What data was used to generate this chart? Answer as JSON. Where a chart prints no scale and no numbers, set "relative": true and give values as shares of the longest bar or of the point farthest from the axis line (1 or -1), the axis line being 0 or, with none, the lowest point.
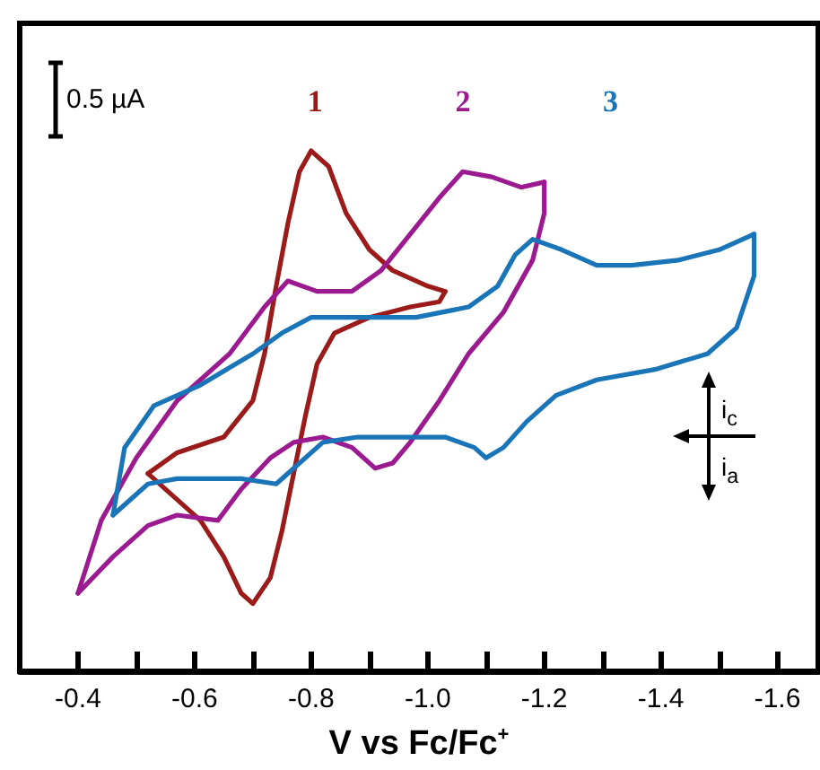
{
  "chart_data": {
    "type": "line",
    "relative": true,
    "xlabel": "V vs Fc/Fc$^{+}$",
    "xlim": [
      -0.3,
      -1.67
    ],
    "xticks": [
      {
        "value": -0.4,
        "label": "-0.4"
      },
      {
        "value": -0.5,
        "label": null
      },
      {
        "value": -0.6,
        "label": "-0.6"
      },
      {
        "value": -0.7,
        "label": null
      },
      {
        "value": -0.8,
        "label": "-0.8"
      },
      {
        "value": -0.9,
        "label": null
      },
      {
        "value": -1.0,
        "label": "-1.0"
      },
      {
        "value": -1.1,
        "label": null
      },
      {
        "value": -1.2,
        "label": "-1.2"
      },
      {
        "value": -1.3,
        "label": null
      },
      {
        "value": -1.4,
        "label": "-1.4"
      },
      {
        "value": -1.5,
        "label": null
      },
      {
        "value": -1.6,
        "label": "-1.6"
      }
    ],
    "legend": false,
    "grid": false,
    "marker": "none",
    "line_style": "solid",
    "annotations": [
      "0.5 µA",
      "i$_{c}$",
      "i$_{a}$"
    ],
    "series": [
      {
        "name": "1",
        "color": "#9b1b1b",
        "x": [
          -0.52,
          -0.57,
          -0.65,
          -0.7,
          -0.72,
          -0.74,
          -0.76,
          -0.78,
          -0.8,
          -0.83,
          -0.86,
          -0.9,
          -0.94,
          -1.0,
          -1.03
        ],
        "values": [
          0.38,
          0.42,
          0.45,
          0.52,
          0.61,
          0.74,
          0.86,
          0.96,
          1.0,
          0.97,
          0.88,
          0.81,
          0.77,
          0.74,
          0.73
        ]
      },
      {
        "color": "#9b1b1b",
        "x": [
          -1.03,
          -1.02,
          -0.97,
          -0.9,
          -0.84,
          -0.81,
          -0.79,
          -0.77,
          -0.75,
          -0.73,
          -0.7,
          -0.68,
          -0.65,
          -0.61,
          -0.56,
          -0.52
        ],
        "values": [
          0.73,
          0.71,
          0.7,
          0.68,
          0.65,
          0.59,
          0.49,
          0.38,
          0.27,
          0.18,
          0.13,
          0.15,
          0.22,
          0.29,
          0.34,
          0.38
        ]
      },
      {
        "name": "2",
        "color": "#9b1a8f",
        "x": [
          -0.4,
          -0.44,
          -0.5,
          -0.57,
          -0.66,
          -0.72,
          -0.76,
          -0.81,
          -0.87,
          -0.92,
          -0.97,
          -1.02,
          -1.06,
          -1.11,
          -1.16,
          -1.2
        ],
        "values": [
          0.15,
          0.29,
          0.41,
          0.52,
          0.61,
          0.7,
          0.75,
          0.73,
          0.73,
          0.77,
          0.84,
          0.91,
          0.96,
          0.95,
          0.93,
          0.94
        ]
      },
      {
        "color": "#9b1a8f",
        "x": [
          -1.2,
          -1.2,
          -1.18,
          -1.13,
          -1.07,
          -1.02,
          -0.97,
          -0.94,
          -0.91,
          -0.87,
          -0.82,
          -0.77,
          -0.73,
          -0.68,
          -0.64,
          -0.57,
          -0.52,
          -0.46,
          -0.4
        ],
        "values": [
          0.94,
          0.88,
          0.79,
          0.69,
          0.61,
          0.52,
          0.44,
          0.4,
          0.39,
          0.43,
          0.45,
          0.44,
          0.41,
          0.35,
          0.29,
          0.3,
          0.28,
          0.22,
          0.15
        ]
      },
      {
        "name": "3",
        "color": "#1a75b8",
        "x": [
          -0.46,
          -0.48,
          -0.53,
          -0.61,
          -0.7,
          -0.75,
          -0.8,
          -0.88,
          -0.98,
          -1.07,
          -1.12,
          -1.15,
          -1.18,
          -1.23,
          -1.29,
          -1.35,
          -1.43,
          -1.5,
          -1.56
        ],
        "values": [
          0.3,
          0.43,
          0.51,
          0.55,
          0.61,
          0.65,
          0.68,
          0.68,
          0.68,
          0.7,
          0.74,
          0.8,
          0.83,
          0.81,
          0.78,
          0.78,
          0.79,
          0.81,
          0.84
        ]
      },
      {
        "color": "#1a75b8",
        "x": [
          -1.56,
          -1.56,
          -1.53,
          -1.48,
          -1.39,
          -1.29,
          -1.22,
          -1.17,
          -1.13,
          -1.1,
          -1.08,
          -1.03,
          -0.96,
          -0.88,
          -0.82,
          -0.78,
          -0.74,
          -0.68,
          -0.57,
          -0.52,
          -0.46
        ],
        "values": [
          0.84,
          0.76,
          0.66,
          0.61,
          0.58,
          0.56,
          0.53,
          0.48,
          0.43,
          0.41,
          0.43,
          0.45,
          0.45,
          0.45,
          0.44,
          0.4,
          0.36,
          0.37,
          0.37,
          0.36,
          0.3
        ]
      }
    ]
  }
}
